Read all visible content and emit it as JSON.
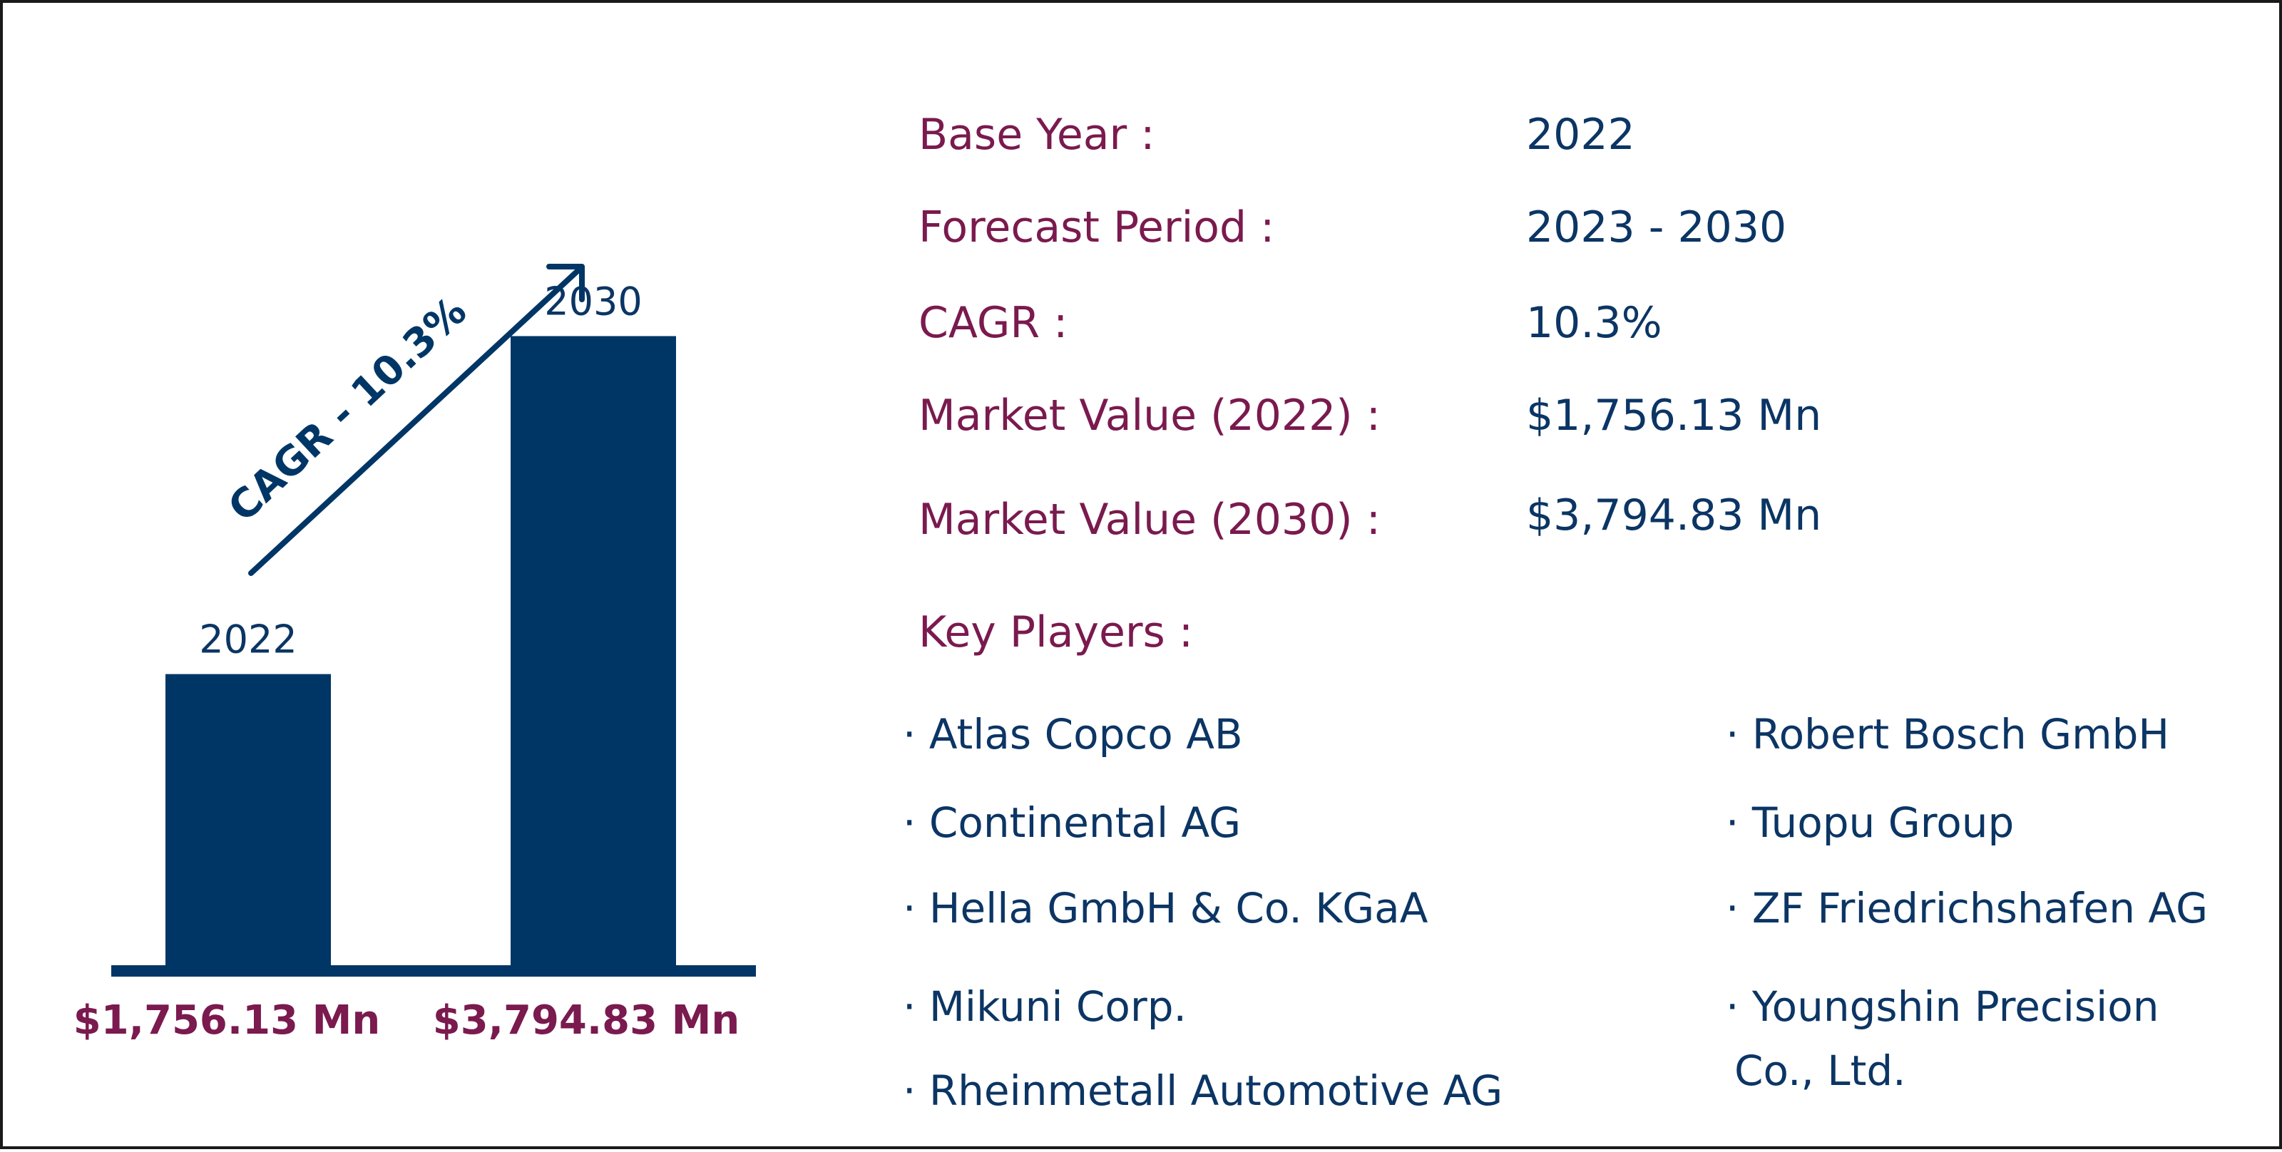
{
  "colors": {
    "bar": "#003666",
    "label": "#7a1a4e",
    "value": "#0b3564",
    "axis": "#003666",
    "border": "#1a1a1a"
  },
  "chart_data": {
    "type": "bar",
    "categories": [
      "2022",
      "2030"
    ],
    "values": [
      1756.13,
      3794.83
    ],
    "value_labels": [
      "$1,756.13 Mn",
      "$3,794.83 Mn"
    ],
    "annotation": "CAGR - 10.3%",
    "grid": false,
    "legend": "none"
  },
  "info": {
    "rows": [
      {
        "label": "Base Year :",
        "value": "2022"
      },
      {
        "label": "Forecast Period :",
        "value": "2023 - 2030"
      },
      {
        "label": "CAGR :",
        "value": "10.3%"
      },
      {
        "label": "Market Value (2022) :",
        "value": "$1,756.13 Mn"
      },
      {
        "label": "Market Value (2030) :",
        "value": "$3,794.83 Mn"
      }
    ],
    "key_players_label": "Key Players :",
    "players_left": [
      "· Atlas Copco AB",
      "· Continental AG",
      "· Hella GmbH & Co. KGaA",
      "· Mikuni Corp.",
      "· Rheinmetall Automotive AG"
    ],
    "players_right": [
      "· Robert Bosch GmbH",
      "· Tuopu Group",
      "· ZF Friedrichshafen AG",
      "· Youngshin Precision",
      "Co., Ltd."
    ]
  }
}
